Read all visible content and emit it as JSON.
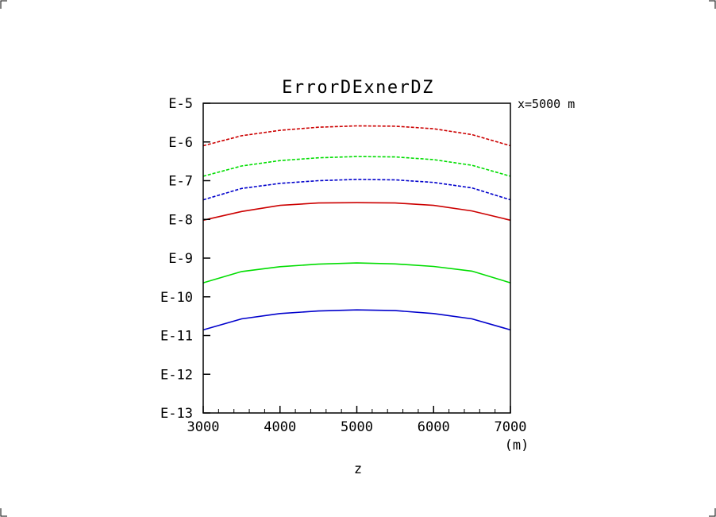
{
  "chart_data": {
    "type": "line",
    "title": "ErrorDExnerDZ",
    "annotation": "x=5000 m",
    "xlabel": "z",
    "xunit": "(m)",
    "ylabel": "",
    "yscale": "log",
    "xlim": [
      3000,
      7000
    ],
    "ylim": [
      1e-13,
      1e-05
    ],
    "x_ticks": [
      "3000",
      "4000",
      "5000",
      "6000",
      "7000"
    ],
    "y_ticks": [
      "E-5",
      "E-6",
      "E-7",
      "E-8",
      "E-9",
      "E-10",
      "E-11",
      "E-12",
      "E-13"
    ],
    "grid": false,
    "x": [
      3000,
      3500,
      4000,
      4500,
      5000,
      5500,
      6000,
      6500,
      7000
    ],
    "series": [
      {
        "color": "#cc0000",
        "style": "dashed",
        "values": [
          8e-07,
          1.45e-06,
          2e-06,
          2.4e-06,
          2.6e-06,
          2.55e-06,
          2.2e-06,
          1.55e-06,
          8e-07
        ]
      },
      {
        "color": "#00dd00",
        "style": "dashed",
        "values": [
          1.3e-07,
          2.4e-07,
          3.3e-07,
          3.9e-07,
          4.2e-07,
          4.1e-07,
          3.5e-07,
          2.5e-07,
          1.3e-07
        ]
      },
      {
        "color": "#0000cc",
        "style": "dashed",
        "values": [
          3.2e-08,
          6.3e-08,
          8.5e-08,
          1e-07,
          1.08e-07,
          1.05e-07,
          9e-08,
          6.5e-08,
          3.2e-08
        ]
      },
      {
        "color": "#cc0000",
        "style": "solid",
        "values": [
          9.5e-09,
          1.6e-08,
          2.3e-08,
          2.65e-08,
          2.7e-08,
          2.65e-08,
          2.3e-08,
          1.65e-08,
          9.5e-09
        ]
      },
      {
        "color": "#00dd00",
        "style": "solid",
        "values": [
          2.3e-10,
          4.5e-10,
          6e-10,
          7e-10,
          7.5e-10,
          7.1e-10,
          6.1e-10,
          4.6e-10,
          2.3e-10
        ]
      },
      {
        "color": "#0000cc",
        "style": "solid",
        "values": [
          1.4e-11,
          2.7e-11,
          3.7e-11,
          4.3e-11,
          4.6e-11,
          4.4e-11,
          3.7e-11,
          2.7e-11,
          1.4e-11
        ]
      }
    ]
  }
}
